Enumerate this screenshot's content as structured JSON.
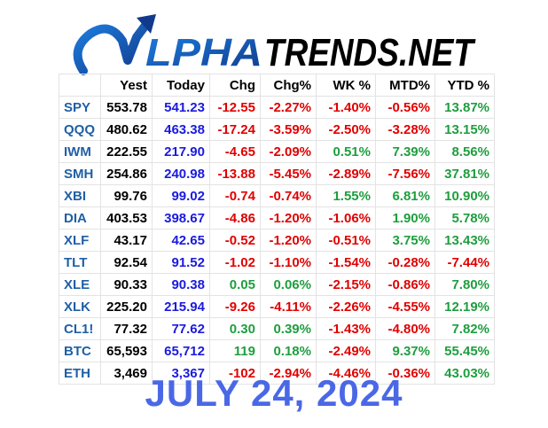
{
  "brand": {
    "logo_text": "ALPHATRENDS.NET",
    "part_alpha": "LPHA",
    "part_trends": "TRENDS.NET",
    "colors": {
      "blue": "#1a73d0",
      "dark_blue": "#123a8c",
      "black": "#000000"
    }
  },
  "table": {
    "columns": [
      "",
      "Yest",
      "Today",
      "Chg",
      "Chg%",
      "WK %",
      "MTD%",
      "YTD %"
    ],
    "rows": [
      {
        "symbol": "SPY",
        "yest": "553.78",
        "today": "541.23",
        "chg": "-12.55",
        "chg_pct": "-2.27%",
        "wk": "-1.40%",
        "mtd": "-0.56%",
        "ytd": "13.87%"
      },
      {
        "symbol": "QQQ",
        "yest": "480.62",
        "today": "463.38",
        "chg": "-17.24",
        "chg_pct": "-3.59%",
        "wk": "-2.50%",
        "mtd": "-3.28%",
        "ytd": "13.15%"
      },
      {
        "symbol": "IWM",
        "yest": "222.55",
        "today": "217.90",
        "chg": "-4.65",
        "chg_pct": "-2.09%",
        "wk": "0.51%",
        "mtd": "7.39%",
        "ytd": "8.56%"
      },
      {
        "symbol": "SMH",
        "yest": "254.86",
        "today": "240.98",
        "chg": "-13.88",
        "chg_pct": "-5.45%",
        "wk": "-2.89%",
        "mtd": "-7.56%",
        "ytd": "37.81%"
      },
      {
        "symbol": "XBI",
        "yest": "99.76",
        "today": "99.02",
        "chg": "-0.74",
        "chg_pct": "-0.74%",
        "wk": "1.55%",
        "mtd": "6.81%",
        "ytd": "10.90%"
      },
      {
        "symbol": "DIA",
        "yest": "403.53",
        "today": "398.67",
        "chg": "-4.86",
        "chg_pct": "-1.20%",
        "wk": "-1.06%",
        "mtd": "1.90%",
        "ytd": "5.78%"
      },
      {
        "symbol": "XLF",
        "yest": "43.17",
        "today": "42.65",
        "chg": "-0.52",
        "chg_pct": "-1.20%",
        "wk": "-0.51%",
        "mtd": "3.75%",
        "ytd": "13.43%"
      },
      {
        "symbol": "TLT",
        "yest": "92.54",
        "today": "91.52",
        "chg": "-1.02",
        "chg_pct": "-1.10%",
        "wk": "-1.54%",
        "mtd": "-0.28%",
        "ytd": "-7.44%"
      },
      {
        "symbol": "XLE",
        "yest": "90.33",
        "today": "90.38",
        "chg": "0.05",
        "chg_pct": "0.06%",
        "wk": "-2.15%",
        "mtd": "-0.86%",
        "ytd": "7.80%"
      },
      {
        "symbol": "XLK",
        "yest": "225.20",
        "today": "215.94",
        "chg": "-9.26",
        "chg_pct": "-4.11%",
        "wk": "-2.26%",
        "mtd": "-4.55%",
        "ytd": "12.19%"
      },
      {
        "symbol": "CL1!",
        "yest": "77.32",
        "today": "77.62",
        "chg": "0.30",
        "chg_pct": "0.39%",
        "wk": "-1.43%",
        "mtd": "-4.80%",
        "ytd": "7.82%"
      },
      {
        "symbol": "BTC",
        "yest": "65,593",
        "today": "65,712",
        "chg": "119",
        "chg_pct": "0.18%",
        "wk": "-2.49%",
        "mtd": "9.37%",
        "ytd": "55.45%"
      },
      {
        "symbol": "ETH",
        "yest": "3,469",
        "today": "3,367",
        "chg": "-102",
        "chg_pct": "-2.94%",
        "wk": "-4.46%",
        "mtd": "-0.36%",
        "ytd": "43.03%"
      }
    ]
  },
  "date": "JULY 24, 2024",
  "colors": {
    "symbol": "#1f5fa6",
    "today": "#1a1ae0",
    "negative": "#e00000",
    "positive": "#1e9e3e",
    "date": "#4a68e6"
  }
}
